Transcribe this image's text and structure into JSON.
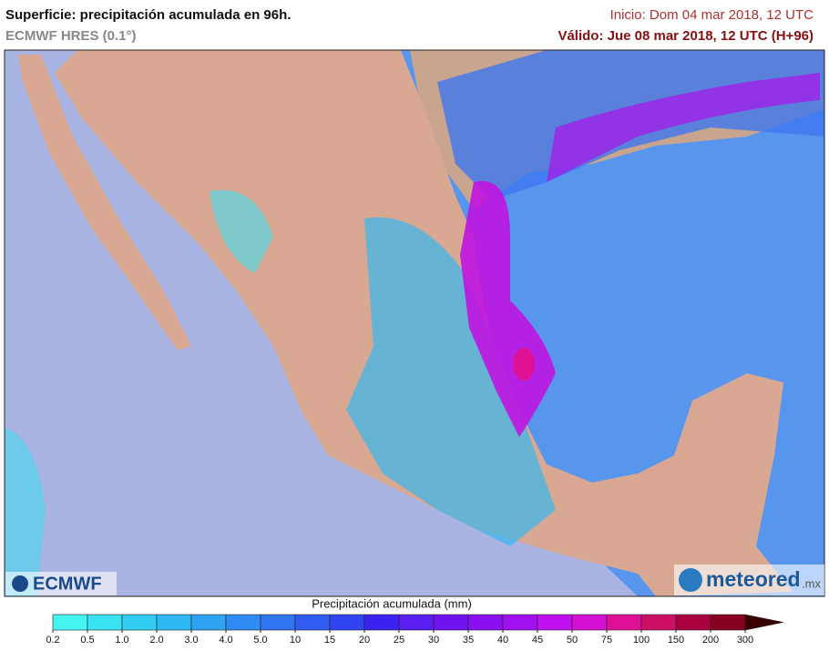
{
  "header": {
    "title": "Superficie: precipitación acumulada en 96h.",
    "subtitle": "ECMWF HRES (0.1°)",
    "start": "Inicio: Dom 04 mar 2018, 12 UTC",
    "valid": "Válido: Jue 08 mar 2018, 12 UTC (H+96)"
  },
  "logos": {
    "left": "ECMWF",
    "right": "meteored",
    "right_suffix": ".mx"
  },
  "colorbar": {
    "label": "Precipitación acumulada (mm)",
    "ticks": [
      0.2,
      0.5,
      {
        "value": 1,
        "label": "1.0"
      },
      {
        "value": 2,
        "label": "2.0"
      },
      {
        "value": 3,
        "label": "3.0"
      },
      {
        "value": 4,
        "label": "4.0"
      },
      {
        "value": 5,
        "label": "5.0"
      },
      10,
      15,
      20,
      25,
      30,
      35,
      40,
      45,
      50,
      75,
      100,
      150,
      200,
      300
    ],
    "colors": [
      "#44f4f0",
      "#38e2f2",
      "#32cdf2",
      "#30b8f2",
      "#2fa3f2",
      "#2f8cf2",
      "#3074f2",
      "#305cf2",
      "#3044f2",
      "#3a22f0",
      "#5a1ef0",
      "#7012f0",
      "#8a10f0",
      "#a210f0",
      "#c010f0",
      "#d410d4",
      "#e01096",
      "#cc1068",
      "#aa0040",
      "#880020"
    ],
    "extend_color": "#3a0000"
  }
}
